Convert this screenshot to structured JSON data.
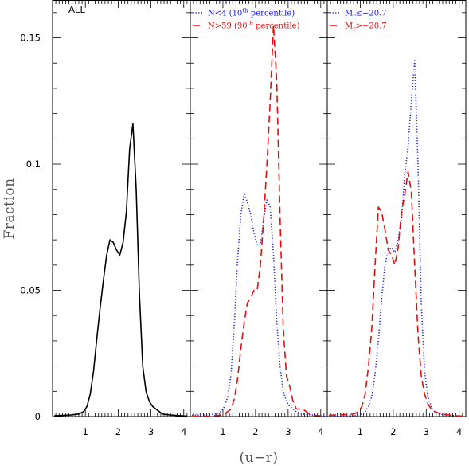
{
  "figure": {
    "ylabel": "Fraction",
    "xlabel": "(u−r)",
    "colors": {
      "black": "#000000",
      "blue": "#1a1adf",
      "red": "#e01010"
    }
  },
  "chart_data": [
    {
      "type": "line",
      "panel_title": "ALL",
      "xlim": [
        0,
        4.2
      ],
      "ylim": [
        0,
        0.165
      ],
      "xticks": [
        1,
        2,
        3,
        4
      ],
      "yticks": [
        0,
        0.05,
        0.1,
        0.15
      ],
      "ytick_labels": [
        "0",
        "0.05",
        "0.1",
        "0.15"
      ],
      "series": [
        {
          "name": "",
          "color": "#000000",
          "dash": "solid",
          "x": [
            0.05,
            0.55,
            0.8,
            0.95,
            1.05,
            1.15,
            1.25,
            1.35,
            1.45,
            1.55,
            1.65,
            1.75,
            1.85,
            1.95,
            2.05,
            2.15,
            2.25,
            2.35,
            2.45,
            2.55,
            2.65,
            2.75,
            2.85,
            2.95,
            3.05,
            3.15,
            3.25,
            3.35,
            3.45,
            3.6,
            3.8,
            4.1
          ],
          "y": [
            0.0003,
            0.0006,
            0.001,
            0.002,
            0.004,
            0.009,
            0.018,
            0.031,
            0.043,
            0.054,
            0.064,
            0.07,
            0.069,
            0.066,
            0.064,
            0.069,
            0.081,
            0.106,
            0.116,
            0.09,
            0.048,
            0.02,
            0.01,
            0.006,
            0.004,
            0.003,
            0.002,
            0.001,
            0.0008,
            0.0006,
            0.0004,
            0.0002
          ]
        }
      ]
    },
    {
      "type": "line",
      "panel_title": "",
      "xlim": [
        0,
        4.2
      ],
      "ylim": [
        0,
        0.165
      ],
      "xticks": [
        1,
        2,
        3,
        4
      ],
      "yticks": [
        0,
        0.05,
        0.1,
        0.15
      ],
      "legend": [
        {
          "main": "N<4  (10",
          "sup": "th",
          "rest": " percentile)",
          "color": "#1a1adf",
          "dash": "dotted"
        },
        {
          "main": "N>59 (90",
          "sup": "th",
          "rest": " percentile)",
          "color": "#e01010",
          "dash": "dashed"
        }
      ],
      "series": [
        {
          "name": "N<4 (10th percentile)",
          "color": "#1a1adf",
          "dash": "dotted",
          "x": [
            0.05,
            0.6,
            0.8,
            0.95,
            1.05,
            1.15,
            1.25,
            1.35,
            1.45,
            1.55,
            1.65,
            1.75,
            1.85,
            1.95,
            2.05,
            2.15,
            2.25,
            2.35,
            2.45,
            2.55,
            2.65,
            2.75,
            2.85,
            2.95,
            3.05,
            3.15,
            3.25,
            3.35,
            3.45,
            3.6,
            3.8,
            4.1
          ],
          "y": [
            0.0005,
            0.0008,
            0.001,
            0.002,
            0.004,
            0.008,
            0.017,
            0.037,
            0.062,
            0.08,
            0.088,
            0.085,
            0.08,
            0.073,
            0.068,
            0.068,
            0.078,
            0.086,
            0.083,
            0.064,
            0.038,
            0.02,
            0.01,
            0.006,
            0.004,
            0.003,
            0.002,
            0.0015,
            0.001,
            0.0008,
            0.0005,
            0.0002
          ]
        },
        {
          "name": "N>59 (90th percentile)",
          "color": "#e01010",
          "dash": "dashed",
          "x": [
            0.05,
            0.6,
            0.9,
            1.05,
            1.15,
            1.25,
            1.35,
            1.45,
            1.55,
            1.65,
            1.75,
            1.85,
            1.95,
            2.05,
            2.15,
            2.25,
            2.35,
            2.45,
            2.55,
            2.65,
            2.75,
            2.85,
            2.95,
            3.05,
            3.15,
            3.25,
            3.35,
            3.45,
            3.55,
            3.65,
            3.8,
            4.1
          ],
          "y": [
            0.0,
            0.0002,
            0.0005,
            0.001,
            0.002,
            0.003,
            0.007,
            0.015,
            0.027,
            0.037,
            0.045,
            0.047,
            0.05,
            0.05,
            0.06,
            0.078,
            0.1,
            0.125,
            0.155,
            0.133,
            0.08,
            0.035,
            0.016,
            0.012,
            0.006,
            0.003,
            0.003,
            0.003,
            0.002,
            0.001,
            0.0005,
            0.0002
          ]
        }
      ]
    },
    {
      "type": "line",
      "panel_title": "",
      "xlim": [
        0,
        4.2
      ],
      "ylim": [
        0,
        0.165
      ],
      "xticks": [
        1,
        2,
        3,
        4
      ],
      "yticks": [
        0,
        0.05,
        0.1,
        0.15
      ],
      "legend": [
        {
          "main": "M",
          "sub": "r",
          "rest": "≤−20.7",
          "color": "#1a1adf",
          "dash": "dotted"
        },
        {
          "main": "M",
          "sub": "r",
          "rest": ">−20.7",
          "color": "#e01010",
          "dash": "dashed"
        }
      ],
      "series": [
        {
          "name": "Mr≤−20.7",
          "color": "#1a1adf",
          "dash": "dotted",
          "x": [
            0.05,
            0.6,
            0.9,
            1.05,
            1.15,
            1.25,
            1.35,
            1.45,
            1.55,
            1.65,
            1.75,
            1.85,
            1.95,
            2.05,
            2.15,
            2.25,
            2.35,
            2.45,
            2.55,
            2.65,
            2.75,
            2.85,
            2.95,
            3.05,
            3.15,
            3.25,
            3.35,
            3.5,
            3.7,
            3.9,
            4.1
          ],
          "y": [
            0.0,
            0.0002,
            0.0005,
            0.001,
            0.002,
            0.004,
            0.008,
            0.017,
            0.03,
            0.047,
            0.06,
            0.066,
            0.067,
            0.065,
            0.07,
            0.078,
            0.096,
            0.107,
            0.125,
            0.141,
            0.1,
            0.045,
            0.018,
            0.008,
            0.004,
            0.002,
            0.001,
            0.0008,
            0.0005,
            0.0003,
            0.0002
          ]
        },
        {
          "name": "Mr>−20.7",
          "color": "#e01010",
          "dash": "dashed",
          "x": [
            0.05,
            0.6,
            0.8,
            0.95,
            1.05,
            1.15,
            1.25,
            1.35,
            1.45,
            1.55,
            1.65,
            1.75,
            1.85,
            1.95,
            2.05,
            2.15,
            2.25,
            2.35,
            2.45,
            2.55,
            2.65,
            2.75,
            2.85,
            2.95,
            3.05,
            3.15,
            3.25,
            3.35,
            3.5,
            3.7,
            3.9,
            4.1
          ],
          "y": [
            0.0005,
            0.0008,
            0.001,
            0.002,
            0.004,
            0.009,
            0.02,
            0.035,
            0.06,
            0.083,
            0.081,
            0.074,
            0.066,
            0.064,
            0.06,
            0.067,
            0.081,
            0.088,
            0.097,
            0.089,
            0.06,
            0.033,
            0.016,
            0.009,
            0.005,
            0.003,
            0.002,
            0.0015,
            0.001,
            0.0006,
            0.0003,
            0.0002
          ]
        }
      ]
    }
  ]
}
